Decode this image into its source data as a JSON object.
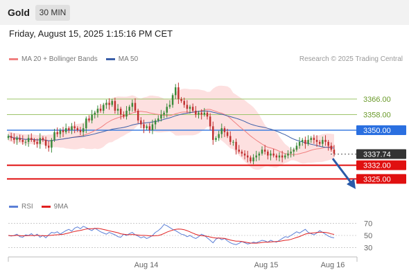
{
  "header": {
    "title": "Gold",
    "timeframe": "30 MIN"
  },
  "datetime": "Friday, August 15, 2025 1:15:16 PM CET",
  "legend": {
    "bb_label": "MA 20 + Bollinger Bands",
    "ma50_label": "MA 50",
    "credit": "Research © 2025 Trading Central"
  },
  "rsi_legend": {
    "rsi_label": "RSI",
    "ma_label": "9MA"
  },
  "colors": {
    "bb": "#f08080",
    "ma50": "#3a5ea8",
    "rsi": "#5b7fd6",
    "rsi_ma": "#e02020",
    "up": "#3a8a3a",
    "down": "#c03030"
  },
  "chart_data": {
    "type": "candlestick",
    "price_range": [
      3318,
      3382
    ],
    "levels": [
      {
        "value": 3366.0,
        "label": "3366.00",
        "kind": "target"
      },
      {
        "value": 3358.0,
        "label": "3358.00",
        "kind": "target"
      },
      {
        "value": 3350.0,
        "label": "3350.00",
        "kind": "pivot"
      },
      {
        "value": 3337.74,
        "label": "3337.74",
        "kind": "last"
      },
      {
        "value": 3332.0,
        "label": "3332.00",
        "kind": "support"
      },
      {
        "value": 3325.0,
        "label": "3325.00",
        "kind": "support"
      }
    ],
    "x_labels": [
      "Aug 14",
      "Aug 15",
      "Aug 16"
    ],
    "close": [
      3347,
      3346,
      3345,
      3346,
      3345,
      3344,
      3344,
      3346,
      3345,
      3344,
      3343,
      3346,
      3345,
      3342,
      3341,
      3345,
      3349,
      3348,
      3350,
      3349,
      3351,
      3350,
      3352,
      3351,
      3350,
      3349,
      3351,
      3356,
      3355,
      3358,
      3359,
      3361,
      3360,
      3363,
      3364,
      3363,
      3365,
      3360,
      3361,
      3358,
      3357,
      3360,
      3362,
      3364,
      3360,
      3355,
      3353,
      3351,
      3352,
      3350,
      3353,
      3355,
      3356,
      3358,
      3359,
      3362,
      3363,
      3368,
      3372,
      3366,
      3365,
      3363,
      3361,
      3362,
      3360,
      3358,
      3359,
      3358,
      3359,
      3357,
      3352,
      3345,
      3346,
      3348,
      3351,
      3349,
      3347,
      3344,
      3344,
      3340,
      3339,
      3338,
      3337,
      3336,
      3334,
      3336,
      3337,
      3338,
      3340,
      3339,
      3337,
      3338,
      3337,
      3336,
      3337,
      3336,
      3337,
      3338,
      3339,
      3340,
      3342,
      3344,
      3345,
      3343,
      3345,
      3346,
      3345,
      3344,
      3343,
      3345,
      3344,
      3342,
      3340,
      3338
    ],
    "rsi": [
      50,
      49,
      50,
      52,
      48,
      47,
      51,
      50,
      53,
      49,
      52,
      47,
      50,
      46,
      51,
      55,
      54,
      56,
      52,
      55,
      58,
      60,
      57,
      62,
      64,
      61,
      65,
      63,
      60,
      58,
      62,
      59,
      56,
      54,
      52,
      55,
      53,
      51,
      48,
      47,
      52,
      50,
      53,
      55,
      51,
      49,
      46,
      48,
      45,
      47,
      50,
      55,
      58,
      62,
      68,
      66,
      63,
      60,
      58,
      55,
      52,
      51,
      48,
      50,
      47,
      45,
      48,
      52,
      50,
      46,
      42,
      38,
      44,
      46,
      43,
      45,
      41,
      38,
      36,
      35,
      37,
      40,
      38,
      36,
      37,
      39,
      38,
      40,
      42,
      41,
      39,
      42,
      40,
      39,
      42,
      45,
      48,
      47,
      50,
      53,
      56,
      54,
      57,
      60,
      55,
      53,
      51,
      54,
      58,
      55,
      52,
      49,
      47,
      46
    ],
    "rsi_axis": [
      70,
      50,
      30
    ]
  }
}
